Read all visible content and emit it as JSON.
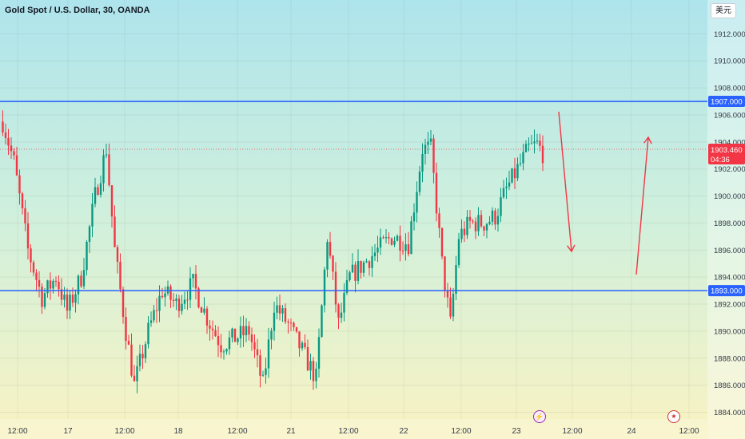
{
  "header": {
    "title": "Gold Spot / U.S. Dollar, 30, OANDA",
    "currency_button": "美元"
  },
  "chart_data": {
    "type": "candlestick",
    "symbol": "Gold Spot / U.S. Dollar",
    "timeframe": "30",
    "broker": "OANDA",
    "y_axis": {
      "ticks": [
        1884,
        1886,
        1888,
        1890,
        1892,
        1894,
        1896,
        1898,
        1900,
        1902,
        1904,
        1906,
        1908,
        1910,
        1912
      ],
      "tick_labels": [
        "1884.000",
        "1886.000",
        "1888.000",
        "1890.000",
        "1892.000",
        "1894.000",
        "1896.000",
        "1898.000",
        "1900.000",
        "1902.000",
        "1904.000",
        "1906.000",
        "1908.000",
        "1910.000",
        "1912.000"
      ],
      "range": [
        1883.5,
        1914.5
      ]
    },
    "x_axis": {
      "labels": [
        "12:00",
        "17",
        "12:00",
        "18",
        "12:00",
        "21",
        "12:00",
        "22",
        "12:00",
        "23",
        "12:00",
        "24",
        "12:00"
      ]
    },
    "horizontal_levels": [
      {
        "price": 1907.0,
        "label": "1907.000",
        "color": "#2962ff"
      },
      {
        "price": 1893.0,
        "label": "1893.000",
        "color": "#2962ff"
      }
    ],
    "current_price": {
      "price": 1903.46,
      "label": "1903.460",
      "countdown": "04:36",
      "color": "#f23645"
    },
    "anchors": [
      [
        0,
        1905.5
      ],
      [
        4,
        1902.5
      ],
      [
        9,
        1896
      ],
      [
        14,
        1892.5
      ],
      [
        19,
        1894
      ],
      [
        23,
        1891.5
      ],
      [
        28,
        1894
      ],
      [
        33,
        1900
      ],
      [
        37,
        1903.5
      ],
      [
        40,
        1896
      ],
      [
        44,
        1890
      ],
      [
        47,
        1886
      ],
      [
        52,
        1890
      ],
      [
        57,
        1893
      ],
      [
        62,
        1892
      ],
      [
        68,
        1893.5
      ],
      [
        73,
        1891
      ],
      [
        78,
        1889
      ],
      [
        83,
        1889.5
      ],
      [
        88,
        1890
      ],
      [
        93,
        1886
      ],
      [
        97,
        1892
      ],
      [
        102,
        1890.5
      ],
      [
        107,
        1888.5
      ],
      [
        112,
        1886.5
      ],
      [
        116,
        1897
      ],
      [
        120,
        1890.5
      ],
      [
        124,
        1894
      ],
      [
        129,
        1895
      ],
      [
        134,
        1896
      ],
      [
        139,
        1897
      ],
      [
        145,
        1896.5
      ],
      [
        150,
        1903.5
      ],
      [
        153,
        1903.5
      ],
      [
        157,
        1895
      ],
      [
        160,
        1890.5
      ],
      [
        163,
        1897
      ],
      [
        167,
        1898
      ],
      [
        172,
        1898
      ],
      [
        176,
        1898.5
      ],
      [
        180,
        1900.5
      ],
      [
        184,
        1902
      ],
      [
        188,
        1903.5
      ],
      [
        191,
        1903.8
      ],
      [
        193,
        1903.2
      ]
    ],
    "candle_count": 194,
    "bull_color": "#089981",
    "bear_color": "#f23645",
    "annotations": [
      {
        "type": "arrow",
        "direction": "down",
        "color": "#f23645"
      },
      {
        "type": "arrow",
        "direction": "up",
        "color": "#f23645"
      }
    ]
  }
}
